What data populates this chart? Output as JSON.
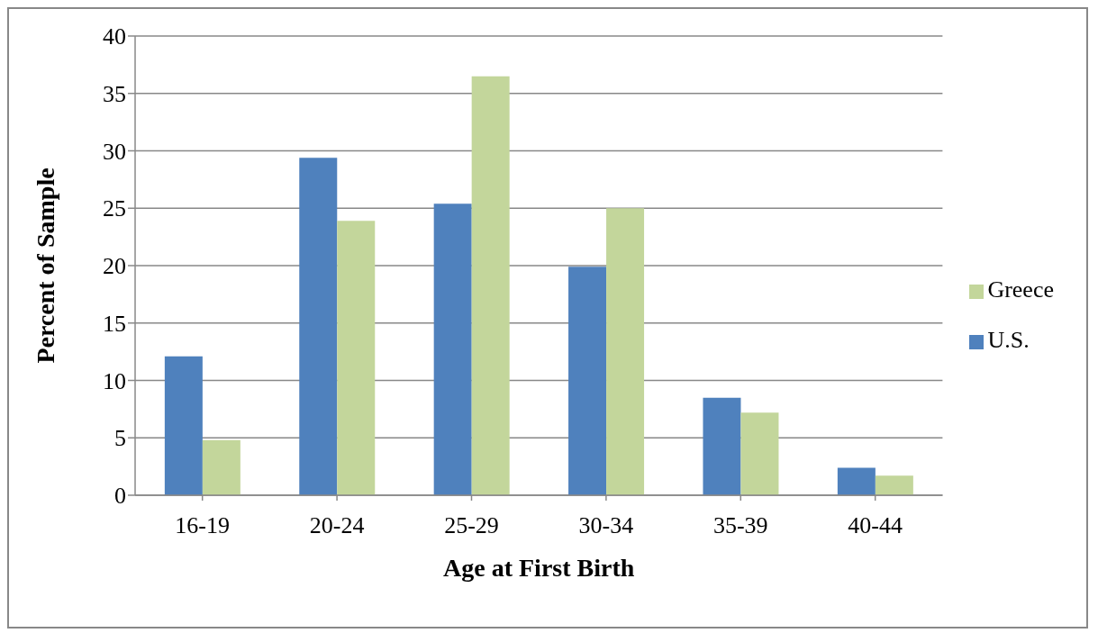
{
  "chart_data": {
    "type": "bar",
    "xlabel": "Age at First Birth",
    "ylabel": "Percent of Sample",
    "categories": [
      "16-19",
      "20-24",
      "25-29",
      "30-34",
      "35-39",
      "40-44"
    ],
    "series": [
      {
        "name": "U.S.",
        "color": "#4f81bd",
        "values": [
          12.1,
          29.4,
          25.4,
          19.9,
          8.5,
          2.4
        ]
      },
      {
        "name": "Greece",
        "color": "#c3d69b",
        "values": [
          4.8,
          23.9,
          36.5,
          25.0,
          7.2,
          1.7
        ]
      }
    ],
    "ylim": [
      0,
      40
    ],
    "yticks": [
      0,
      5,
      10,
      15,
      20,
      25,
      30,
      35,
      40
    ],
    "grid": "y",
    "legend": "right"
  }
}
